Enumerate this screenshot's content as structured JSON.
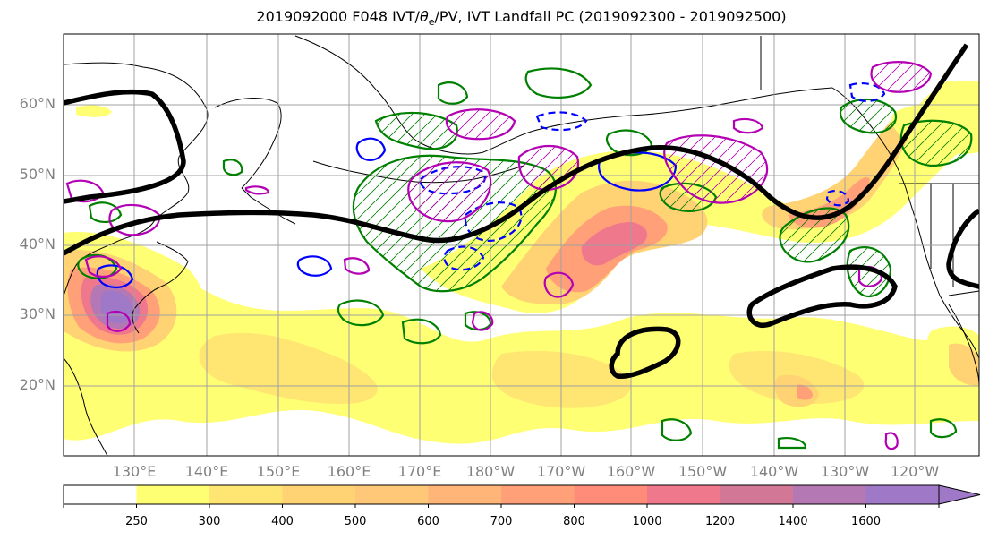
{
  "title": "2019092000 F048 IVT/θe/PV, IVT Landfall PC (2019092300 - 2019092500)",
  "title_main": "2019092000 F048 IVT/",
  "title_theta": "θ",
  "title_sub": "e",
  "title_rest": "/PV, IVT Landfall PC (2019092300 - 2019092500)",
  "lat_labels": [
    "60°N",
    "50°N",
    "40°N",
    "30°N",
    "20°N"
  ],
  "lon_labels": [
    "130°E",
    "140°E",
    "150°E",
    "160°E",
    "170°E",
    "180°W",
    "170°W",
    "160°W",
    "150°W",
    "140°W",
    "130°W",
    "120°W"
  ],
  "colorbar": {
    "levels": [
      "250",
      "300",
      "400",
      "500",
      "600",
      "700",
      "800",
      "1000",
      "1200",
      "1400",
      "1600"
    ],
    "colors": [
      "#ffffff",
      "#ffff73",
      "#ffe673",
      "#ffd273",
      "#ffc878",
      "#ffb478",
      "#ffa078",
      "#ff8c78",
      "#f0788c",
      "#d27896",
      "#b478b4",
      "#a078c8"
    ]
  },
  "colors": {
    "background": "#ffffff",
    "coast": "#000000",
    "grid": "#a0a0a0",
    "pv_contour": "#000000",
    "theta_pos": "#008000",
    "theta_neg": "#0000ff",
    "pc_contour": "#b400b4"
  }
}
